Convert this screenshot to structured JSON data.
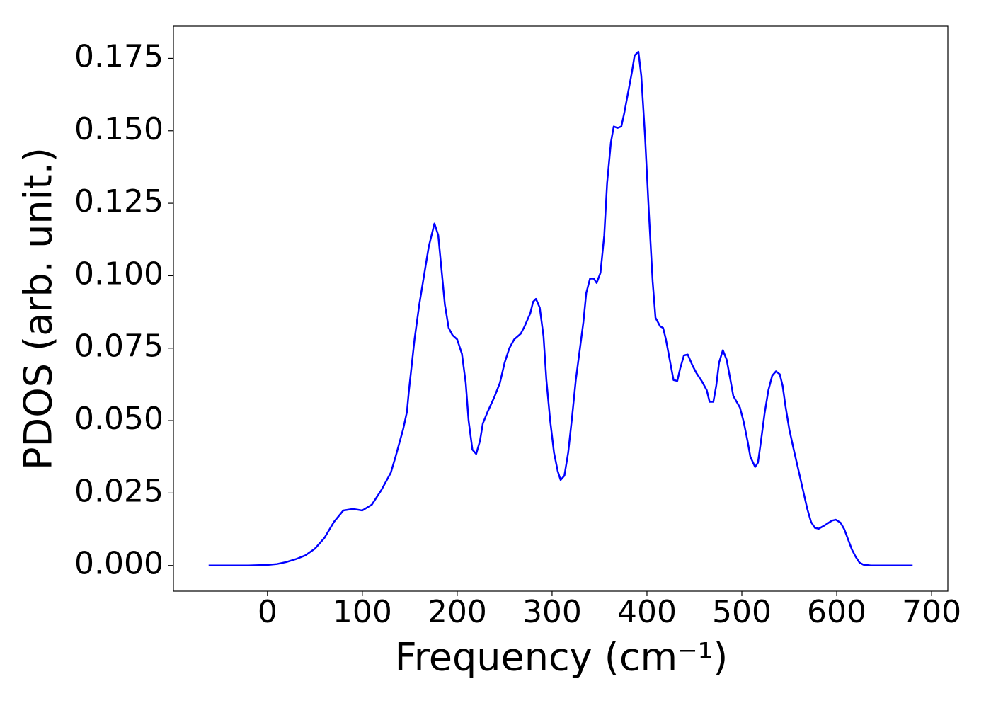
{
  "chart_data": {
    "type": "line",
    "xlabel": "Frequency (cm⁻¹)",
    "ylabel": "PDOS (arb. unit.)",
    "xlim": [
      -99.1,
      717.1
    ],
    "ylim": [
      -0.00886,
      0.1861
    ],
    "xticks": [
      0,
      100,
      200,
      300,
      400,
      500,
      600,
      700
    ],
    "yticks": [
      {
        "value": 0,
        "label": "0.000"
      },
      {
        "value": 0.025,
        "label": "0.025"
      },
      {
        "value": 0.05,
        "label": "0.050"
      },
      {
        "value": 0.075,
        "label": "0.075"
      },
      {
        "value": 0.1,
        "label": "0.100"
      },
      {
        "value": 0.125,
        "label": "0.125"
      },
      {
        "value": 0.15,
        "label": "0.150"
      },
      {
        "value": 0.175,
        "label": "0.175"
      }
    ],
    "series": [
      {
        "color": "#0000ff",
        "x": [
          -62,
          -40,
          -20,
          0,
          10,
          20,
          30,
          40,
          50,
          60,
          70,
          80,
          90,
          100,
          110,
          120,
          130,
          135,
          143,
          147,
          149,
          155,
          160,
          165,
          170,
          176,
          180,
          187,
          191,
          195,
          200,
          205,
          209,
          212,
          216,
          220,
          224,
          227,
          232,
          239,
          245,
          250,
          255,
          260,
          267,
          271,
          277,
          280,
          283,
          287,
          291,
          294,
          298,
          302,
          306,
          309,
          313,
          317,
          321,
          325,
          329,
          333,
          336,
          340,
          344,
          347,
          351,
          355,
          358,
          362,
          365,
          369,
          373,
          376,
          380,
          384,
          387,
          391,
          394,
          398,
          402,
          406,
          409,
          414,
          417,
          420,
          424,
          428,
          432,
          435,
          439,
          443,
          448,
          452,
          458,
          463,
          466,
          470,
          473,
          476,
          480,
          484,
          488,
          491,
          498,
          502,
          506,
          509,
          514,
          517,
          520,
          524,
          528,
          532,
          536,
          540,
          543,
          546,
          550,
          554,
          561,
          569,
          573,
          577,
          581,
          587,
          595,
          599,
          604,
          608,
          612,
          616,
          620,
          624,
          628,
          636,
          680
        ],
        "values": [
          0,
          0,
          0,
          0.0002,
          0.0005,
          0.0012,
          0.0022,
          0.0035,
          0.0058,
          0.0095,
          0.015,
          0.019,
          0.0195,
          0.019,
          0.021,
          0.026,
          0.032,
          0.0375,
          0.047,
          0.053,
          0.06,
          0.078,
          0.09,
          0.1,
          0.11,
          0.118,
          0.114,
          0.09,
          0.082,
          0.0795,
          0.078,
          0.073,
          0.063,
          0.05,
          0.04,
          0.0385,
          0.043,
          0.049,
          0.053,
          0.058,
          0.063,
          0.07,
          0.075,
          0.078,
          0.08,
          0.0825,
          0.087,
          0.091,
          0.092,
          0.089,
          0.079,
          0.064,
          0.05,
          0.039,
          0.0325,
          0.0295,
          0.031,
          0.039,
          0.051,
          0.064,
          0.074,
          0.084,
          0.094,
          0.099,
          0.099,
          0.0975,
          0.101,
          0.114,
          0.132,
          0.146,
          0.1515,
          0.151,
          0.1515,
          0.156,
          0.163,
          0.17,
          0.176,
          0.1773,
          0.169,
          0.148,
          0.122,
          0.098,
          0.0855,
          0.0825,
          0.082,
          0.078,
          0.071,
          0.064,
          0.0637,
          0.068,
          0.0725,
          0.0728,
          0.069,
          0.0665,
          0.0635,
          0.0605,
          0.0565,
          0.0565,
          0.062,
          0.07,
          0.0743,
          0.071,
          0.064,
          0.0585,
          0.0545,
          0.0495,
          0.043,
          0.0375,
          0.034,
          0.0355,
          0.0425,
          0.0525,
          0.0605,
          0.0655,
          0.067,
          0.066,
          0.062,
          0.055,
          0.047,
          0.041,
          0.031,
          0.0195,
          0.015,
          0.013,
          0.0127,
          0.0138,
          0.0155,
          0.0158,
          0.0148,
          0.0125,
          0.009,
          0.0055,
          0.003,
          0.001,
          0.0003,
          0,
          0
        ]
      }
    ]
  }
}
